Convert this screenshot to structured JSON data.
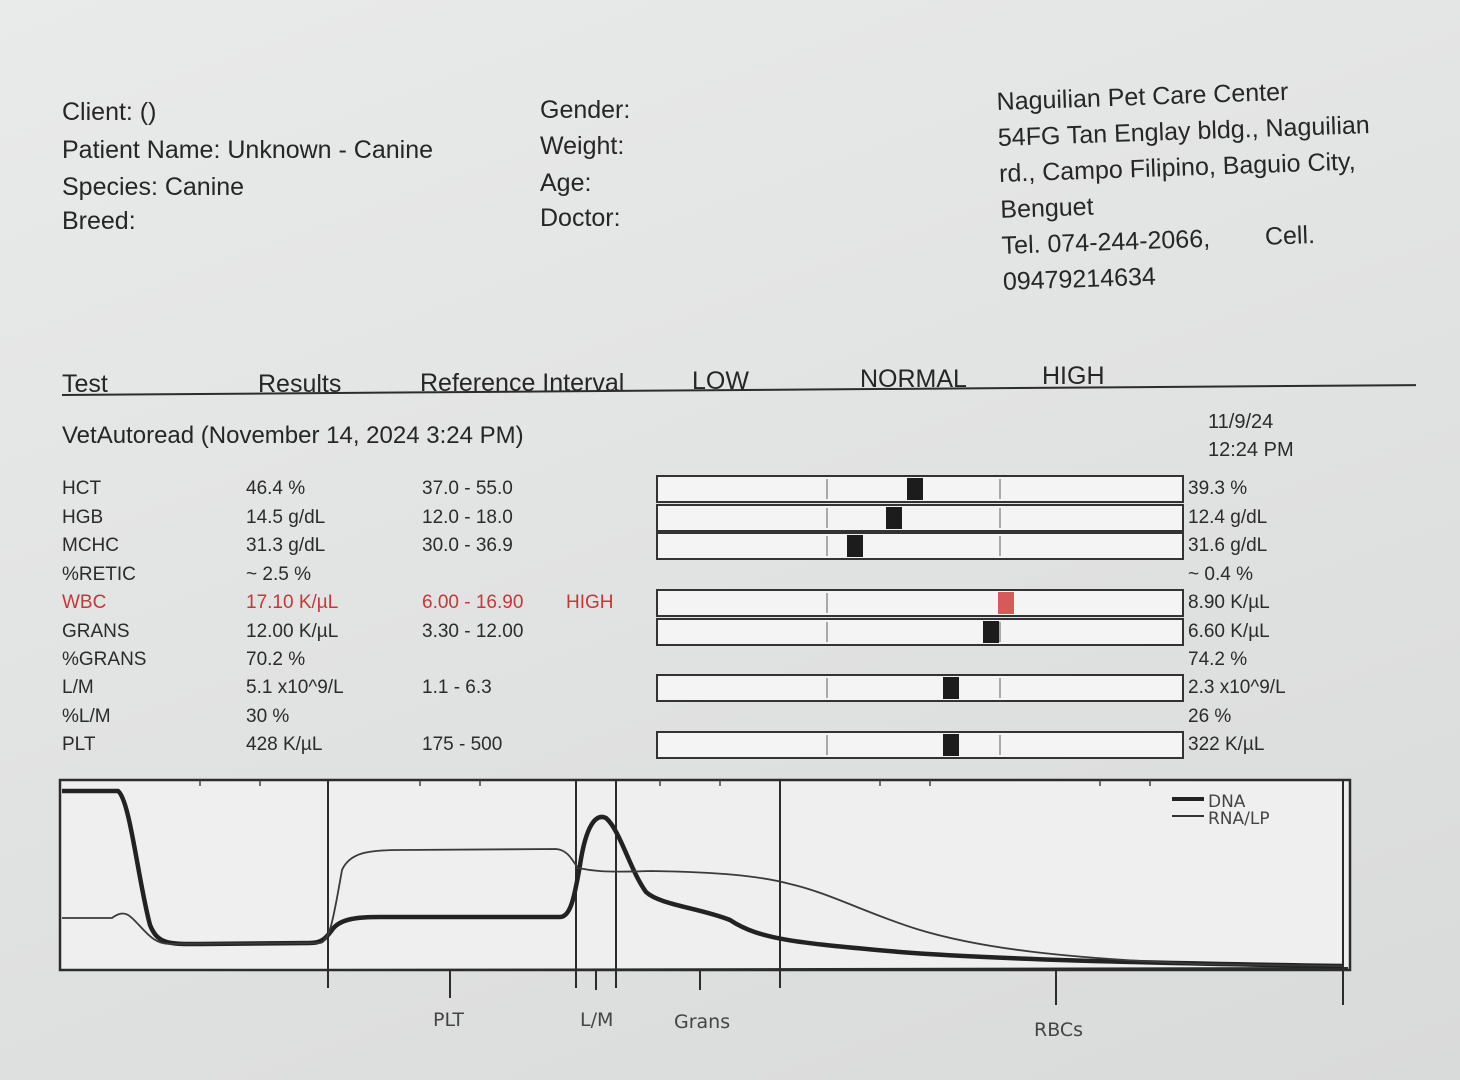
{
  "patient": {
    "client": "Client:  ()",
    "patient_name": "Patient Name: Unknown - Canine",
    "species": "Species: Canine",
    "breed": "Breed:",
    "gender": "Gender:",
    "weight": "Weight:",
    "age": "Age:",
    "doctor": "Doctor:"
  },
  "clinic": {
    "name": "Naguilian Pet Care Center",
    "addr1": "54FG Tan Englay bldg., Naguilian",
    "addr2": "rd., Campo Filipino, Baguio City,",
    "addr3": "Benguet",
    "tel": "Tel. 074-244-2066,",
    "cell": "Cell.",
    "cell_no": "09479214634"
  },
  "columns": {
    "test": "Test",
    "results": "Results",
    "ref": "Reference Interval",
    "low": "LOW",
    "normal": "NORMAL",
    "high": "HIGH"
  },
  "run": {
    "title": "VetAutoread (November 14, 2024 3:24 PM)",
    "prev_date": "11/9/24",
    "prev_time": "12:24 PM"
  },
  "rows": [
    {
      "test": "HCT",
      "result": "46.4 %",
      "ref": "37.0 - 55.0",
      "flag": "",
      "prev": "39.3 %",
      "marker": 0.49,
      "bar": true
    },
    {
      "test": "HGB",
      "result": "14.5 g/dL",
      "ref": "12.0 - 18.0",
      "flag": "",
      "prev": "12.4 g/dL",
      "marker": 0.45,
      "bar": true
    },
    {
      "test": "MCHC",
      "result": "31.3 g/dL",
      "ref": "30.0 - 36.9",
      "flag": "",
      "prev": "31.6 g/dL",
      "marker": 0.375,
      "bar": true
    },
    {
      "test": "%RETIC",
      "result": "~ 2.5 %",
      "ref": "",
      "flag": "",
      "prev": "~ 0.4 %",
      "bar": false
    },
    {
      "test": "WBC",
      "result": "17.10 K/µL",
      "ref": "6.00 - 16.90",
      "flag": "HIGH",
      "prev": "8.90 K/µL",
      "marker": 0.665,
      "bar": true,
      "high": true
    },
    {
      "test": "GRANS",
      "result": "12.00 K/µL",
      "ref": "3.30 - 12.00",
      "flag": "",
      "prev": "6.60 K/µL",
      "marker": 0.635,
      "bar": true
    },
    {
      "test": "%GRANS",
      "result": "70.2 %",
      "ref": "",
      "flag": "",
      "prev": "74.2 %",
      "bar": false
    },
    {
      "test": "L/M",
      "result": "5.1 x10^9/L",
      "ref": "1.1 - 6.3",
      "flag": "",
      "prev": "2.3 x10^9/L",
      "marker": 0.56,
      "bar": true
    },
    {
      "test": "%L/M",
      "result": "30 %",
      "ref": "",
      "flag": "",
      "prev": "26 %",
      "bar": false
    },
    {
      "test": "PLT",
      "result": "428 K/µL",
      "ref": "175 - 500",
      "flag": "",
      "prev": "322 K/µL",
      "marker": 0.56,
      "bar": true
    }
  ],
  "histogram": {
    "legend": [
      "DNA",
      "RNA/LP"
    ],
    "labels": [
      "PLT",
      "L/M",
      "Grans",
      "RBCs"
    ]
  }
}
